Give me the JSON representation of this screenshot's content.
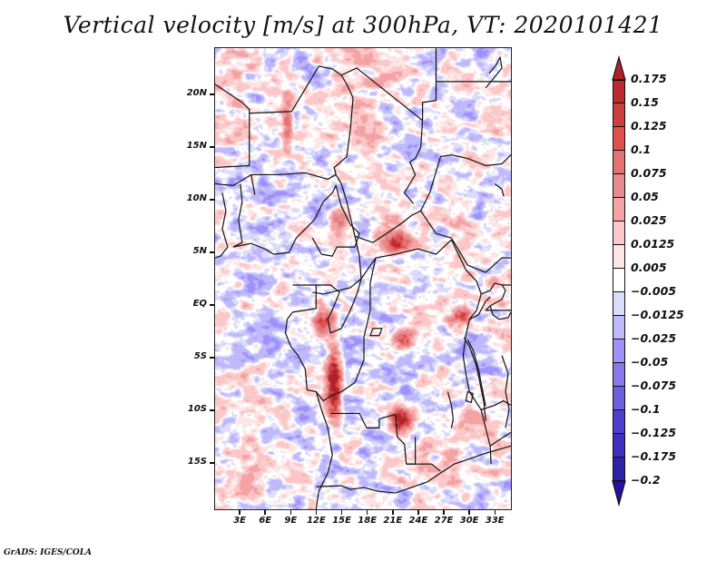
{
  "header": {
    "title": "Vertical velocity [m/s] at 300hPa, VT: 2020101421"
  },
  "footer": {
    "credit": "GrADS: IGES/COLA"
  },
  "chart_data": {
    "type": "heatmap",
    "title": "Vertical velocity [m/s] at 300hPa, VT: 2020101421",
    "variable": "Vertical velocity",
    "units": "m/s",
    "level": "300hPa",
    "valid_time": "2020101421",
    "xlabel": "",
    "ylabel": "",
    "x_range_deg_east": [
      0,
      35
    ],
    "y_range_deg_north": [
      -19.5,
      24.5
    ],
    "x_ticks": [
      {
        "value": 3,
        "label": "3E"
      },
      {
        "value": 6,
        "label": "6E"
      },
      {
        "value": 9,
        "label": "9E"
      },
      {
        "value": 12,
        "label": "12E"
      },
      {
        "value": 15,
        "label": "15E"
      },
      {
        "value": 18,
        "label": "18E"
      },
      {
        "value": 21,
        "label": "21E"
      },
      {
        "value": 24,
        "label": "24E"
      },
      {
        "value": 27,
        "label": "27E"
      },
      {
        "value": 30,
        "label": "30E"
      },
      {
        "value": 33,
        "label": "33E"
      }
    ],
    "y_ticks": [
      {
        "value": 20,
        "label": "20N"
      },
      {
        "value": 15,
        "label": "15N"
      },
      {
        "value": 10,
        "label": "10N"
      },
      {
        "value": 5,
        "label": "5N"
      },
      {
        "value": 0,
        "label": "EQ"
      },
      {
        "value": -5,
        "label": "5S"
      },
      {
        "value": -10,
        "label": "10S"
      },
      {
        "value": -15,
        "label": "15S"
      }
    ],
    "colorbar": {
      "placement": "right",
      "levels": [
        {
          "label": "0.175",
          "value": 0.175
        },
        {
          "label": "0.15",
          "value": 0.15
        },
        {
          "label": "0.125",
          "value": 0.125
        },
        {
          "label": "0.1",
          "value": 0.1
        },
        {
          "label": "0.075",
          "value": 0.075
        },
        {
          "label": "0.05",
          "value": 0.05
        },
        {
          "label": "0.025",
          "value": 0.025
        },
        {
          "label": "0.0125",
          "value": 0.0125
        },
        {
          "label": "0.005",
          "value": 0.005
        },
        {
          "label": "−0.005",
          "value": -0.005
        },
        {
          "label": "−0.0125",
          "value": -0.0125
        },
        {
          "label": "−0.025",
          "value": -0.025
        },
        {
          "label": "−0.05",
          "value": -0.05
        },
        {
          "label": "−0.075",
          "value": -0.075
        },
        {
          "label": "−0.1",
          "value": -0.1
        },
        {
          "label": "−0.125",
          "value": -0.125
        },
        {
          "label": "−0.175",
          "value": -0.175
        },
        {
          "label": "−0.2",
          "value": -0.2
        }
      ],
      "colors_top_to_bottom": [
        "#b0222a",
        "#bb2a30",
        "#cc3e40",
        "#e0504f",
        "#e57373",
        "#e58a8e",
        "#f4a3a5",
        "#fcc7c8",
        "#fde4e5",
        "#ffffff",
        "#dcdcfb",
        "#bfb8fb",
        "#a092fb",
        "#8878ea",
        "#6e5fdc",
        "#4e40cc",
        "#3f2fbe",
        "#2e22a8",
        "#2a0ea0"
      ],
      "extend": "both"
    },
    "notable_features": [
      {
        "description": "strong ascent (red) streak",
        "region": "northern Angola, ~13-15E, 6-10S"
      },
      {
        "description": "strong ascent cluster",
        "region": "~21-22E, 11S"
      },
      {
        "description": "ascent cluster",
        "region": "Central African Republic, ~21E, 6N"
      },
      {
        "description": "ascent cluster",
        "region": "DRC, ~22E, 3S"
      }
    ]
  }
}
